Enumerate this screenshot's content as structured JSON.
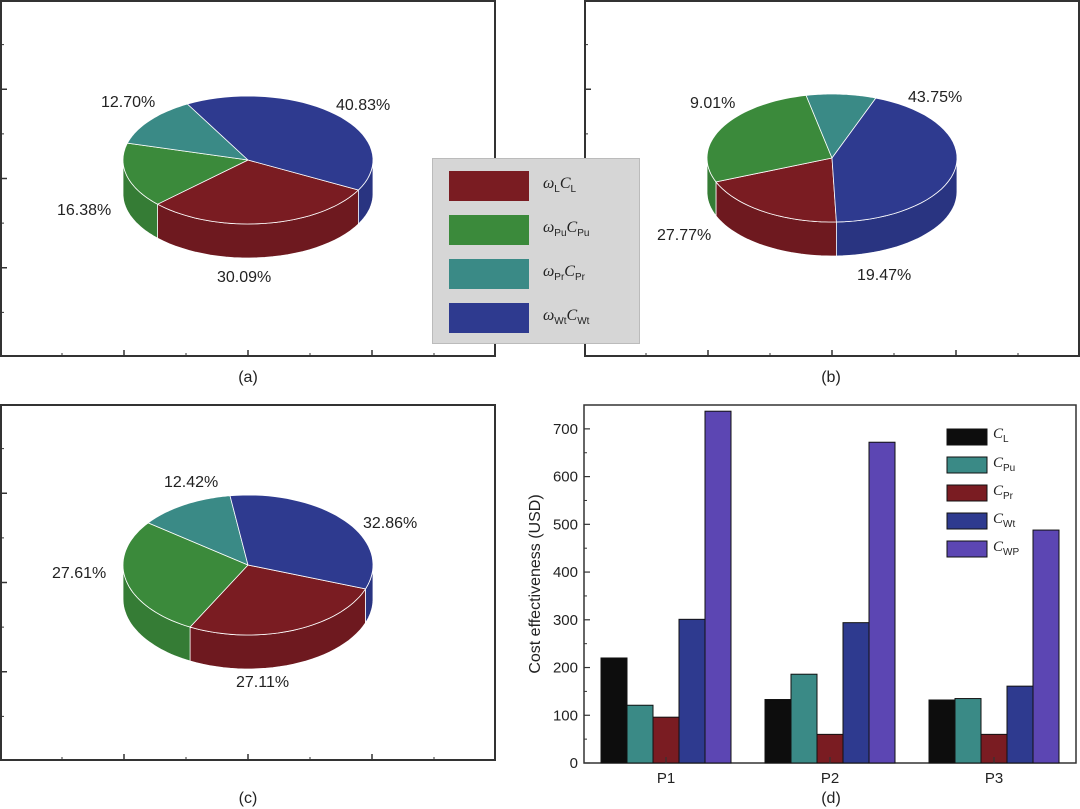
{
  "colors": {
    "red": "#7a1c22",
    "green": "#3b8a3b",
    "teal": "#3a8a86",
    "blue": "#2e3a8f",
    "black": "#0d0d0d",
    "purple": "#5c46b3"
  },
  "legend_pies": [
    {
      "sym": "ω",
      "sub1": "L",
      "sym2": "C",
      "sub2": "L",
      "color": "#7a1c22"
    },
    {
      "sym": "ω",
      "sub1": "Pu",
      "sym2": "C",
      "sub2": "Pu",
      "color": "#3b8a3b"
    },
    {
      "sym": "ω",
      "sub1": "Pr",
      "sym2": "C",
      "sub2": "Pr",
      "color": "#3a8a86"
    },
    {
      "sym": "ω",
      "sub1": "Wt",
      "sym2": "C",
      "sub2": "Wt",
      "color": "#2e3a8f"
    }
  ],
  "chart_data": [
    {
      "type": "pie",
      "panel_label": "(a)",
      "slices": [
        {
          "series": "ωLCL",
          "value": 30.09,
          "label": "30.09%"
        },
        {
          "series": "ωPuCPu",
          "value": 16.38,
          "label": "16.38%"
        },
        {
          "series": "ωPrCPr",
          "value": 12.7,
          "label": "12.70%"
        },
        {
          "series": "ωWtCWt",
          "value": 40.83,
          "label": "40.83%"
        }
      ]
    },
    {
      "type": "pie",
      "panel_label": "(b)",
      "slices": [
        {
          "series": "ωLCL",
          "value": 19.47,
          "label": "19.47%"
        },
        {
          "series": "ωPuCPu",
          "value": 27.77,
          "label": "27.77%"
        },
        {
          "series": "ωPrCPr",
          "value": 9.01,
          "label": "9.01%"
        },
        {
          "series": "ωWtCWt",
          "value": 43.75,
          "label": "43.75%"
        }
      ]
    },
    {
      "type": "pie",
      "panel_label": "(c)",
      "slices": [
        {
          "series": "ωLCL",
          "value": 27.11,
          "label": "27.11%"
        },
        {
          "series": "ωPuCPu",
          "value": 27.61,
          "label": "27.61%"
        },
        {
          "series": "ωPrCPr",
          "value": 12.42,
          "label": "12.42%"
        },
        {
          "series": "ωWtCWt",
          "value": 32.86,
          "label": "32.86%"
        }
      ]
    },
    {
      "type": "bar",
      "panel_label": "(d)",
      "ylabel": "Cost effectiveness (USD)",
      "ylim": [
        0,
        750
      ],
      "yticks": [
        0,
        100,
        200,
        300,
        400,
        500,
        600,
        700
      ],
      "categories": [
        "P1",
        "P2",
        "P3"
      ],
      "legend_position": "top-right",
      "series": [
        {
          "name": "CL",
          "sym": "C",
          "sub": "L",
          "color": "#0d0d0d",
          "values": [
            220,
            133,
            132
          ]
        },
        {
          "name": "CPu",
          "sym": "C",
          "sub": "Pu",
          "color": "#3a8a86",
          "values": [
            121,
            186,
            135
          ]
        },
        {
          "name": "CPr",
          "sym": "C",
          "sub": "Pr",
          "color": "#7a1c22",
          "values": [
            96,
            60,
            60
          ]
        },
        {
          "name": "CWt",
          "sym": "C",
          "sub": "Wt",
          "color": "#2e3a8f",
          "values": [
            301,
            294,
            161
          ]
        },
        {
          "name": "CWP",
          "sym": "C",
          "sub": "WP",
          "color": "#5c46b3",
          "values": [
            737,
            672,
            488
          ]
        }
      ]
    }
  ]
}
